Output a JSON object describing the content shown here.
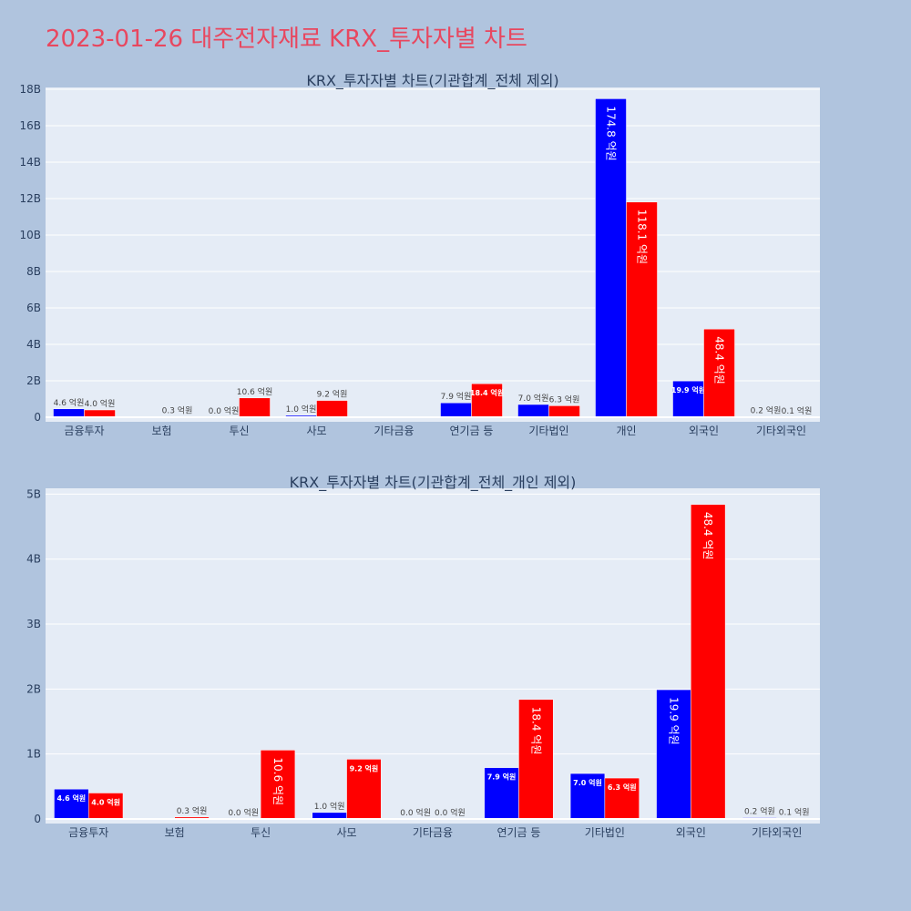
{
  "page": {
    "title": "2023-01-26 대주전자재료 KRX_투자자별 차트"
  },
  "chart_data": [
    {
      "type": "bar",
      "title": "KRX_투자자별 차트(기관합계_전체 제외)",
      "categories": [
        "금융투자",
        "보험",
        "투신",
        "사모",
        "기타금융",
        "연기금 등",
        "기타법인",
        "개인",
        "외국인",
        "기타외국인"
      ],
      "series": [
        {
          "color": "#0000ff",
          "values": [
            0.46,
            0,
            0,
            0.1,
            0,
            0.79,
            0.7,
            17.48,
            1.99,
            0.02
          ],
          "labels": [
            "4.6 억원",
            "",
            "0.0 억원",
            "1.0 억원",
            "",
            "7.9 억원",
            "7.0 억원",
            "174.8 억원",
            "19.9 억원",
            "0.2 억원"
          ]
        },
        {
          "color": "#ff0000",
          "values": [
            0.4,
            0.03,
            1.06,
            0.92,
            0,
            1.84,
            0.63,
            11.81,
            4.84,
            0.01
          ],
          "labels": [
            "4.0 억원",
            "0.3 억원",
            "10.6 억원",
            "9.2 억원",
            "",
            "18.4 억원",
            "6.3 억원",
            "118.1 억원",
            "48.4 억원",
            "0.1 억원"
          ]
        }
      ],
      "y_ticks": [
        0,
        2,
        4,
        6,
        8,
        10,
        12,
        14,
        16,
        18
      ],
      "y_tick_labels": [
        "0",
        "2B",
        "4B",
        "6B",
        "8B",
        "10B",
        "12B",
        "14B",
        "16B",
        "18B"
      ],
      "ylim": [
        0,
        18.1
      ],
      "grid": true,
      "legend": "none"
    },
    {
      "type": "bar",
      "title": "KRX_투자자별 차트(기관합계_전체_개인 제외)",
      "categories": [
        "금융투자",
        "보험",
        "투신",
        "사모",
        "기타금융",
        "연기금 등",
        "기타법인",
        "외국인",
        "기타외국인"
      ],
      "series": [
        {
          "color": "#0000ff",
          "values": [
            0.46,
            0,
            0,
            0.1,
            0,
            0.79,
            0.7,
            1.99,
            0.02
          ],
          "labels": [
            "4.6 억원",
            "",
            "0.0 억원",
            "1.0 억원",
            "0.0 억원",
            "7.9 억원",
            "7.0 억원",
            "19.9 억원",
            "0.2 억원"
          ]
        },
        {
          "color": "#ff0000",
          "values": [
            0.4,
            0.03,
            1.06,
            0.92,
            0,
            1.84,
            0.63,
            4.84,
            0.01
          ],
          "labels": [
            "4.0 억원",
            "0.3 억원",
            "10.6 억원",
            "9.2 억원",
            "0.0 억원",
            "18.4 억원",
            "6.3 억원",
            "48.4 억원",
            "0.1 억원"
          ]
        }
      ],
      "y_ticks": [
        0,
        1,
        2,
        3,
        4,
        5
      ],
      "y_tick_labels": [
        "0",
        "1B",
        "2B",
        "3B",
        "4B",
        "5B"
      ],
      "ylim": [
        0,
        5.09
      ],
      "grid": true,
      "legend": "none"
    }
  ]
}
